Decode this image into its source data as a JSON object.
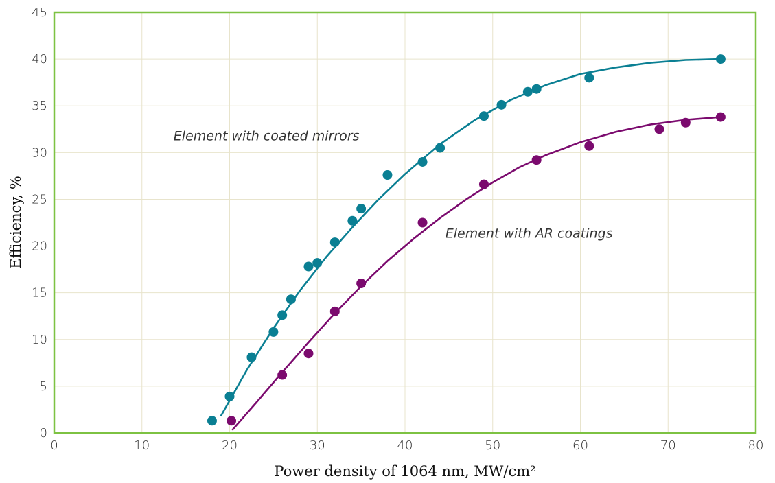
{
  "chart_data": {
    "type": "scatter",
    "xlabel": "Power density of 1064 nm, MW/cm²",
    "ylabel": "Efficiency, %",
    "xlim": [
      0,
      80
    ],
    "ylim": [
      0,
      45
    ],
    "xticks": [
      "0",
      "10",
      "20",
      "30",
      "40",
      "50",
      "60",
      "70",
      "80"
    ],
    "yticks": [
      "0",
      "5",
      "10",
      "15",
      "20",
      "25",
      "30",
      "35",
      "40",
      "45"
    ],
    "grid": true,
    "colors": {
      "frame": "#7dc242",
      "grid": "#e8e4cc"
    },
    "series": [
      {
        "name": "Element with coated mirrors",
        "color": "#0a7f93",
        "points": [
          [
            18,
            1.3
          ],
          [
            20,
            3.9
          ],
          [
            22.5,
            8.1
          ],
          [
            25,
            10.8
          ],
          [
            26,
            12.6
          ],
          [
            27,
            14.3
          ],
          [
            29,
            17.8
          ],
          [
            30,
            18.2
          ],
          [
            32,
            20.4
          ],
          [
            34,
            22.7
          ],
          [
            35,
            24.0
          ],
          [
            38,
            27.6
          ],
          [
            42,
            29.0
          ],
          [
            44,
            30.5
          ],
          [
            49,
            33.9
          ],
          [
            51,
            35.1
          ],
          [
            54,
            36.5
          ],
          [
            55,
            36.8
          ],
          [
            61,
            38.0
          ],
          [
            76,
            40.0
          ]
        ],
        "fit": [
          [
            19,
            1.8
          ],
          [
            22,
            6.8
          ],
          [
            25,
            11.2
          ],
          [
            28,
            15.2
          ],
          [
            31,
            18.8
          ],
          [
            34,
            22.0
          ],
          [
            37,
            25.0
          ],
          [
            40,
            27.7
          ],
          [
            44,
            30.9
          ],
          [
            48,
            33.5
          ],
          [
            52,
            35.6
          ],
          [
            56,
            37.2
          ],
          [
            60,
            38.4
          ],
          [
            64,
            39.1
          ],
          [
            68,
            39.6
          ],
          [
            72,
            39.9
          ],
          [
            76,
            40.0
          ]
        ]
      },
      {
        "name": "Element with AR coatings",
        "color": "#7b0a6e",
        "points": [
          [
            20.2,
            1.3
          ],
          [
            26,
            6.2
          ],
          [
            29,
            8.5
          ],
          [
            32,
            13.0
          ],
          [
            35,
            16.0
          ],
          [
            42,
            22.5
          ],
          [
            49,
            26.6
          ],
          [
            55,
            29.2
          ],
          [
            61,
            30.7
          ],
          [
            69,
            32.5
          ],
          [
            72,
            33.2
          ],
          [
            76,
            33.8
          ]
        ],
        "fit": [
          [
            20.3,
            0.3
          ],
          [
            23,
            3.2
          ],
          [
            26,
            6.5
          ],
          [
            29,
            9.7
          ],
          [
            32,
            12.8
          ],
          [
            35,
            15.7
          ],
          [
            38,
            18.4
          ],
          [
            41,
            20.8
          ],
          [
            44,
            23.0
          ],
          [
            47,
            25.0
          ],
          [
            50,
            26.8
          ],
          [
            53,
            28.4
          ],
          [
            56,
            29.7
          ],
          [
            60,
            31.1
          ],
          [
            64,
            32.2
          ],
          [
            68,
            33.0
          ],
          [
            72,
            33.5
          ],
          [
            76,
            33.8
          ]
        ]
      }
    ],
    "annotations": [
      {
        "text": "Element with coated mirrors",
        "x": 13.6,
        "y": 31.3
      },
      {
        "text": "Element with AR coatings",
        "x": 44.6,
        "y": 20.9
      }
    ]
  }
}
